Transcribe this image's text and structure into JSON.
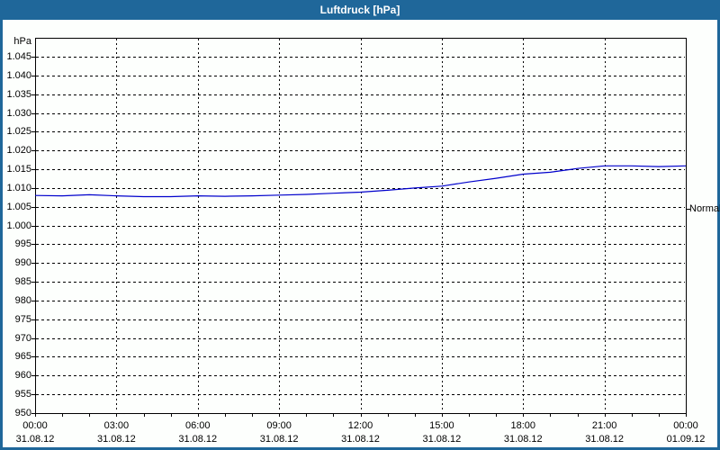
{
  "window": {
    "title": "Luftdruck [hPa]"
  },
  "colors": {
    "titlebar_bg": "#1f679a",
    "window_border": "#1f679a",
    "content_bg": "#fdfffd",
    "title_text": "#ffffff",
    "axis_text": "#000000",
    "grid_color": "#000000",
    "line_color": "#0000cc"
  },
  "chart_data": {
    "type": "line",
    "title": "Luftdruck [hPa]",
    "ylabel": "hPa",
    "xlabel": "",
    "ylim": [
      950,
      1045
    ],
    "y_tick_step": 5,
    "y_tick_labels": [
      "1.045",
      "1.040",
      "1.035",
      "1.030",
      "1.025",
      "1.020",
      "1.015",
      "1.010",
      "1.005",
      "1.000",
      "995",
      "990",
      "985",
      "980",
      "975",
      "970",
      "965",
      "960",
      "955",
      "950"
    ],
    "x_hour_range": [
      0,
      24
    ],
    "x_major_tick_hours": 3,
    "x_minor_tick_hours": 1,
    "x_ticks": [
      {
        "time": "00:00",
        "date": "31.08.12"
      },
      {
        "time": "03:00",
        "date": "31.08.12"
      },
      {
        "time": "06:00",
        "date": "31.08.12"
      },
      {
        "time": "09:00",
        "date": "31.08.12"
      },
      {
        "time": "12:00",
        "date": "31.08.12"
      },
      {
        "time": "15:00",
        "date": "31.08.12"
      },
      {
        "time": "18:00",
        "date": "31.08.12"
      },
      {
        "time": "21:00",
        "date": "31.08.12"
      },
      {
        "time": "00:00",
        "date": "01.09.12"
      }
    ],
    "grid": "dashed",
    "legend": "none",
    "series": [
      {
        "name": "Luftdruck",
        "x_hours": [
          0,
          1,
          2,
          3,
          4,
          5,
          6,
          7,
          8,
          9,
          10,
          11,
          12,
          13,
          14,
          15,
          16,
          17,
          18,
          19,
          20,
          21,
          22,
          23,
          24
        ],
        "values": [
          1008.0,
          1007.9,
          1008.2,
          1007.9,
          1007.7,
          1007.7,
          1007.9,
          1007.8,
          1007.9,
          1008.1,
          1008.3,
          1008.6,
          1008.9,
          1009.4,
          1010.0,
          1010.5,
          1011.6,
          1012.6,
          1013.7,
          1014.2,
          1015.2,
          1015.9,
          1015.9,
          1015.7,
          1015.9
        ]
      }
    ],
    "annotations": [
      {
        "label": "Normal",
        "value": 1004.5,
        "side": "right"
      }
    ]
  }
}
